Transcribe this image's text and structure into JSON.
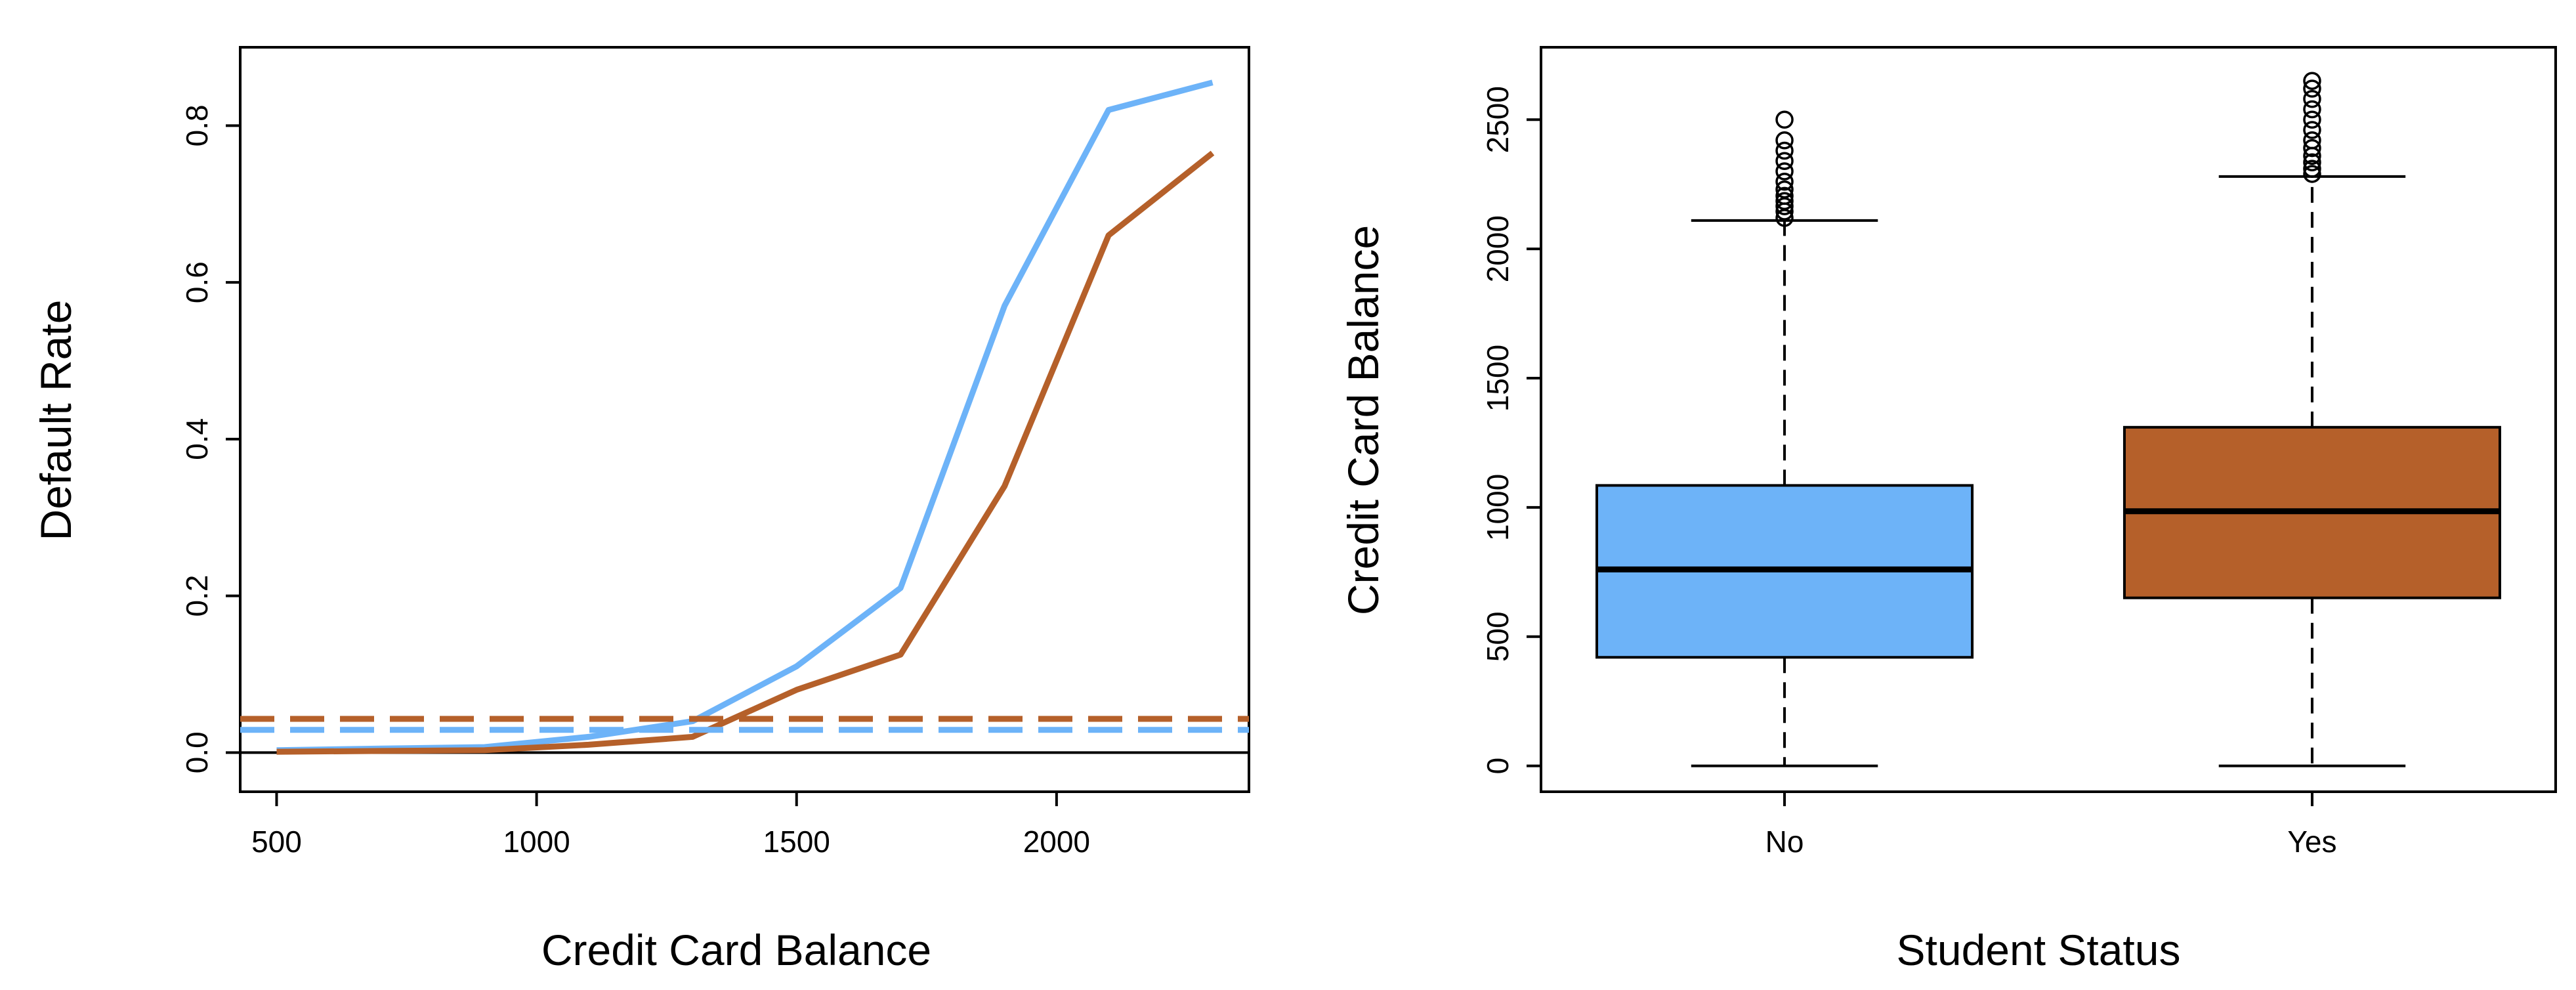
{
  "colors": {
    "student": "#6db3f8",
    "non_student": "#b5602a",
    "outline": "#000000"
  },
  "chart_data": [
    {
      "type": "line",
      "xlabel": "Credit Card Balance",
      "ylabel": "Default Rate",
      "xlim": [
        430,
        2370
      ],
      "ylim": [
        -0.05,
        0.9
      ],
      "xticks": [
        500,
        1000,
        1500,
        2000
      ],
      "yticks": [
        0.0,
        0.2,
        0.4,
        0.6,
        0.8
      ],
      "ytick_labels": [
        "0.0",
        "0.2",
        "0.4",
        "0.6",
        "0.8"
      ],
      "grid": false,
      "series": [
        {
          "color": "#6db3f8",
          "style": "solid",
          "x": [
            500,
            700,
            900,
            1100,
            1300,
            1500,
            1700,
            1900,
            2100,
            2300
          ],
          "y": [
            0.003,
            0.005,
            0.007,
            0.02,
            0.04,
            0.11,
            0.21,
            0.57,
            0.82,
            0.855
          ]
        },
        {
          "color": "#b5602a",
          "style": "solid",
          "x": [
            500,
            700,
            900,
            1100,
            1300,
            1500,
            1700,
            1900,
            2100,
            2300
          ],
          "y": [
            0.001,
            0.002,
            0.003,
            0.01,
            0.02,
            0.08,
            0.125,
            0.34,
            0.66,
            0.765
          ]
        },
        {
          "color": "#b5602a",
          "style": "dashed",
          "x": [
            430,
            2370
          ],
          "y": [
            0.043,
            0.043
          ]
        },
        {
          "color": "#6db3f8",
          "style": "dashed",
          "x": [
            430,
            2370
          ],
          "y": [
            0.029,
            0.029
          ]
        }
      ],
      "reference_line": {
        "y": 0.0,
        "color": "#000000"
      }
    },
    {
      "type": "box",
      "xlabel": "Student Status",
      "ylabel": "Credit Card Balance",
      "categories": [
        "No",
        "Yes"
      ],
      "ylim": [
        -100,
        2780
      ],
      "yticks": [
        0,
        500,
        1000,
        1500,
        2000,
        2500
      ],
      "ytick_labels": [
        "0",
        "500",
        "1000",
        "1500",
        "2000",
        "2500"
      ],
      "grid": false,
      "boxes": [
        {
          "category": "No",
          "color": "#6db3f8",
          "min": 0,
          "q1": 420,
          "median": 760,
          "q3": 1085,
          "max": 2110,
          "outliers": [
            2120,
            2145,
            2165,
            2185,
            2205,
            2230,
            2260,
            2300,
            2340,
            2380,
            2420,
            2500
          ]
        },
        {
          "category": "Yes",
          "color": "#b5602a",
          "min": 0,
          "q1": 650,
          "median": 985,
          "q3": 1310,
          "max": 2280,
          "outliers": [
            2290,
            2310,
            2335,
            2360,
            2390,
            2420,
            2460,
            2500,
            2540,
            2580,
            2620,
            2650
          ]
        }
      ]
    }
  ]
}
